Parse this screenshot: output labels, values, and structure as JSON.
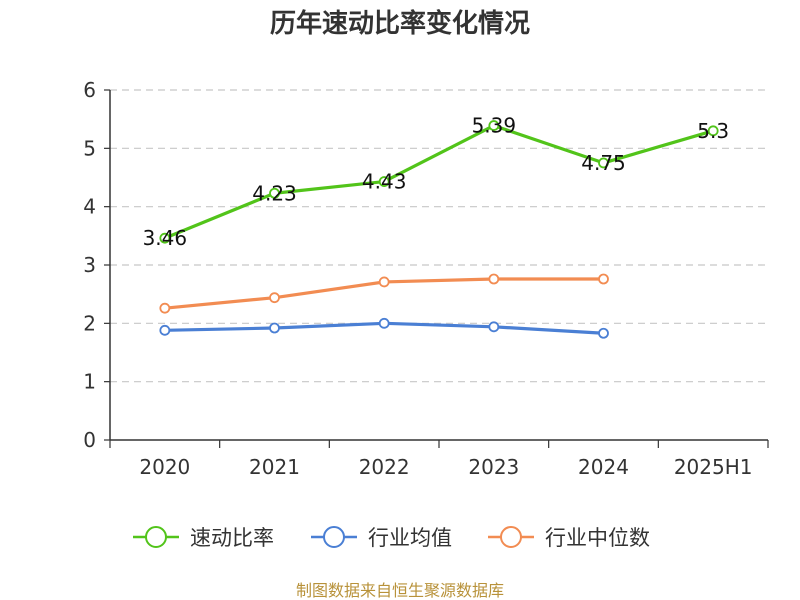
{
  "chart_data": {
    "type": "line",
    "title": "历年速动比率变化情况",
    "categories": [
      "2020",
      "2021",
      "2022",
      "2023",
      "2024",
      "2025H1"
    ],
    "ylim": [
      0,
      6
    ],
    "yticks": [
      "0",
      "1",
      "2",
      "3",
      "4",
      "5",
      "6"
    ],
    "grid": true,
    "legend_position": "bottom",
    "series": [
      {
        "name": "速动比率",
        "color": "#52c41a",
        "values": [
          3.46,
          4.23,
          4.43,
          5.39,
          4.75,
          5.3
        ],
        "labels": [
          "3.46",
          "4.23",
          "4.43",
          "5.39",
          "4.75",
          "5.3"
        ]
      },
      {
        "name": "行业均值",
        "color": "#4a7fd4",
        "values": [
          1.88,
          1.92,
          2.0,
          1.94,
          1.83,
          null
        ]
      },
      {
        "name": "行业中位数",
        "color": "#f28c52",
        "values": [
          2.26,
          2.44,
          2.71,
          2.76,
          2.76,
          null
        ]
      }
    ],
    "source": "制图数据来自恒生聚源数据库"
  }
}
